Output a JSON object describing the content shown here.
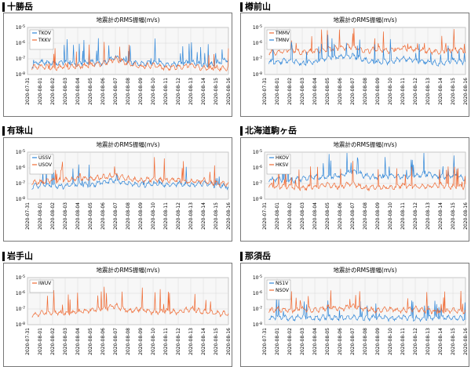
{
  "colors": {
    "blue": "#2f86d8",
    "orange": "#ef6a33",
    "grid": "#d8d8d8",
    "bg": "#f7f7f7"
  },
  "common": {
    "plot_title": "地震計のRMS振幅(m/s)",
    "y_ticks": [
      "10^-5",
      "10^-6",
      "10^-7",
      "10^-8"
    ],
    "x_ticks": [
      "2020-07-31",
      "2020-08-01",
      "2020-08-02",
      "2020-08-03",
      "2020-08-04",
      "2020-08-05",
      "2020-08-06",
      "2020-08-07",
      "2020-08-08",
      "2020-08-09",
      "2020-08-10",
      "2020-08-11",
      "2020-08-12",
      "2020-08-13",
      "2020-08-14",
      "2020-08-15",
      "2020-08-16"
    ]
  },
  "stations": [
    {
      "name": "十勝岳",
      "chart_data": {
        "type": "line",
        "title": "地震計のRMS振幅(m/s)",
        "yscale": "log",
        "ylim": [
          -8,
          -5
        ],
        "x_range": [
          "2020-07-31",
          "2020-08-16"
        ],
        "series": [
          {
            "name": "TKOV",
            "color": "blue",
            "base": [
              -7.6,
              -7.2,
              -7.3,
              -7.2,
              -7.3,
              -7.2,
              -7.3,
              -6.9,
              -7.2,
              -7.3,
              -7.2,
              -7.4,
              -7.3,
              -7.2,
              -7.4,
              -7.3,
              -7.0
            ],
            "start": 0.35
          },
          {
            "name": "TKKV",
            "color": "orange",
            "base": [
              -7.6,
              -7.5,
              -7.6,
              -7.5,
              -7.5,
              -7.4,
              -7.3,
              -7.0,
              -7.3,
              -7.5,
              -7.4,
              -7.6,
              -7.5,
              -7.4,
              -7.6,
              -7.6,
              -7.6
            ],
            "start": 0.35
          }
        ]
      }
    },
    {
      "name": "樽前山",
      "chart_data": {
        "type": "line",
        "title": "地震計のRMS振幅(m/s)",
        "yscale": "log",
        "ylim": [
          -8,
          -5
        ],
        "x_range": [
          "2020-07-31",
          "2020-08-16"
        ],
        "series": [
          {
            "name": "TMMV",
            "color": "orange",
            "base": [
              -6.5,
              -6.6,
              -6.4,
              -6.6,
              -6.5,
              -6.4,
              -6.3,
              -6.2,
              -6.5,
              -6.4,
              -6.5,
              -6.3,
              -6.4,
              -6.5,
              -6.6,
              -6.4,
              -6.5
            ],
            "start": 0.35
          },
          {
            "name": "TMNV",
            "color": "blue",
            "base": [
              -7.2,
              -7.2,
              -7.1,
              -7.3,
              -7.2,
              -6.9,
              -6.9,
              -6.8,
              -7.1,
              -7.2,
              -7.2,
              -7.0,
              -7.1,
              -7.2,
              -7.3,
              -7.1,
              -7.2
            ],
            "start": 0.35
          }
        ]
      }
    },
    {
      "name": "有珠山",
      "chart_data": {
        "type": "line",
        "title": "地震計のRMS振幅(m/s)",
        "yscale": "log",
        "ylim": [
          -8,
          -5
        ],
        "x_range": [
          "2020-07-31",
          "2020-08-16"
        ],
        "series": [
          {
            "name": "USSV",
            "color": "blue",
            "base": [
              -7.3,
              -7.1,
              -7.1,
              -7.2,
              -7.0,
              -7.1,
              -6.9,
              -6.8,
              -7.0,
              -7.1,
              -7.0,
              -7.1,
              -7.0,
              -7.1,
              -7.0,
              -7.1,
              -7.2
            ],
            "start": 0.35
          },
          {
            "name": "USOV",
            "color": "orange",
            "base": [
              -7.0,
              -6.9,
              -6.8,
              -6.8,
              -6.7,
              -6.7,
              -6.6,
              -6.5,
              -6.7,
              -6.8,
              -6.7,
              -6.8,
              -6.8,
              -6.9,
              -6.8,
              -7.0,
              -7.0
            ],
            "start": 0.35
          }
        ]
      }
    },
    {
      "name": "北海道駒ヶ岳",
      "chart_data": {
        "type": "line",
        "title": "地震計のRMS振幅(m/s)",
        "yscale": "log",
        "ylim": [
          -8,
          -5
        ],
        "x_range": [
          "2020-07-31",
          "2020-08-16"
        ],
        "series": [
          {
            "name": "HKOV",
            "color": "blue",
            "base": [
              -6.8,
              -6.7,
              -6.8,
              -6.7,
              -6.6,
              -6.6,
              -6.5,
              -6.2,
              -6.5,
              -6.6,
              -6.5,
              -6.6,
              -6.5,
              -6.4,
              -6.6,
              -6.5,
              -6.7
            ],
            "start": 0.35
          },
          {
            "name": "HKSV",
            "color": "orange",
            "base": [
              -7.1,
              -7.2,
              -7.2,
              -7.3,
              -7.2,
              -7.1,
              -7.2,
              -7.0,
              -7.3,
              -7.2,
              -7.3,
              -7.1,
              -7.2,
              -7.2,
              -7.1,
              -7.2,
              -7.2
            ],
            "start": 0.35
          }
        ]
      }
    },
    {
      "name": "岩手山",
      "chart_data": {
        "type": "line",
        "title": "地震計のRMS振幅(m/s)",
        "yscale": "log",
        "ylim": [
          -8,
          -5
        ],
        "x_range": [
          "2020-07-31",
          "2020-08-16"
        ],
        "series": [
          {
            "name": "IWUV",
            "color": "orange",
            "base": [
              -7.4,
              -7.3,
              -7.2,
              -7.3,
              -7.2,
              -7.1,
              -7.0,
              -6.8,
              -7.1,
              -7.0,
              -7.2,
              -7.1,
              -7.2,
              -7.0,
              -7.2,
              -7.3,
              -7.3
            ],
            "start": 0.35
          }
        ]
      }
    },
    {
      "name": "那須岳",
      "chart_data": {
        "type": "line",
        "title": "地震計のRMS振幅(m/s)",
        "yscale": "log",
        "ylim": [
          -8,
          -5
        ],
        "x_range": [
          "2020-07-31",
          "2020-08-16"
        ],
        "series": [
          {
            "name": "NS1V",
            "color": "blue",
            "base": [
              -7.6,
              -7.5,
              -7.6,
              -7.5,
              -7.6,
              -7.5,
              -7.6,
              -7.5,
              -7.6,
              -7.5,
              -7.6,
              -7.5,
              -7.6,
              -7.6,
              -7.5,
              -7.6,
              -7.6
            ],
            "start": 0.35
          },
          {
            "name": "NSOV",
            "color": "orange",
            "base": [
              -7.2,
              -7.0,
              -7.1,
              -7.0,
              -7.1,
              -6.9,
              -7.0,
              -6.8,
              -7.0,
              -7.1,
              -7.0,
              -7.1,
              -7.0,
              -7.1,
              -7.2,
              -7.1,
              -7.2
            ],
            "start": 0.35
          }
        ]
      }
    }
  ]
}
